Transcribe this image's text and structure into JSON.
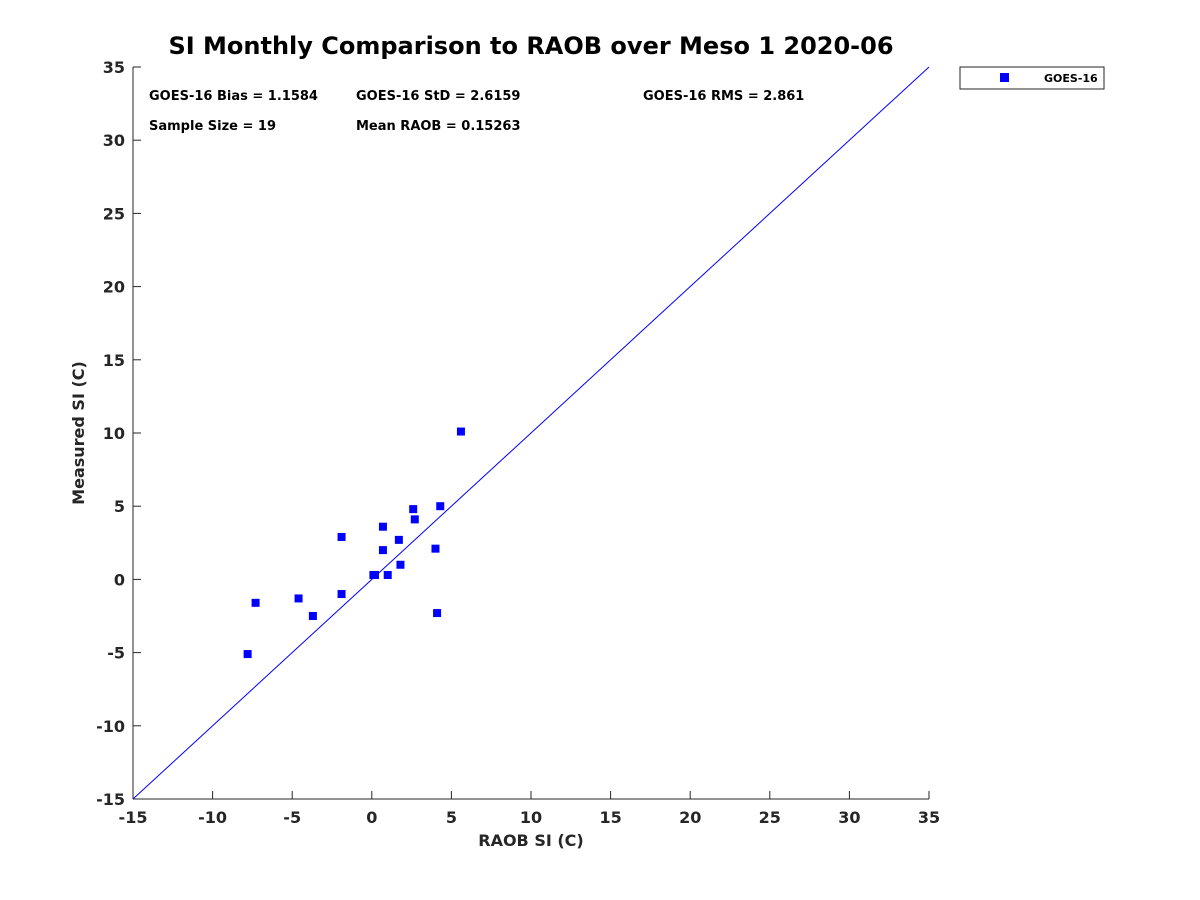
{
  "chart_data": {
    "type": "scatter",
    "title": "SI Monthly Comparison to RAOB over Meso 1 2020-06",
    "xlabel": "RAOB SI (C)",
    "ylabel": "Measured SI (C)",
    "xlim": [
      -15,
      35
    ],
    "ylim": [
      -15,
      35
    ],
    "xticks": [
      -15,
      -10,
      -5,
      0,
      5,
      10,
      15,
      20,
      25,
      30,
      35
    ],
    "yticks": [
      -15,
      -10,
      -5,
      0,
      5,
      10,
      15,
      20,
      25,
      30,
      35
    ],
    "grid": false,
    "reference_line": {
      "name": "1:1 line",
      "x": [
        -15,
        35
      ],
      "y": [
        -15,
        35
      ],
      "color": "#0000ff"
    },
    "series": [
      {
        "name": "GOES-16",
        "color": "#0000ff",
        "marker": "square",
        "points": [
          {
            "x": 5.6,
            "y": 10.1
          },
          {
            "x": 2.6,
            "y": 4.8
          },
          {
            "x": 2.7,
            "y": 4.1
          },
          {
            "x": 4.3,
            "y": 5.0
          },
          {
            "x": 0.7,
            "y": 3.6
          },
          {
            "x": -1.9,
            "y": 2.9
          },
          {
            "x": 1.7,
            "y": 2.7
          },
          {
            "x": 0.7,
            "y": 2.0
          },
          {
            "x": 4.0,
            "y": 2.1
          },
          {
            "x": 1.8,
            "y": 1.0
          },
          {
            "x": 0.1,
            "y": 0.3
          },
          {
            "x": 0.2,
            "y": 0.3
          },
          {
            "x": 1.0,
            "y": 0.3
          },
          {
            "x": -1.9,
            "y": -1.0
          },
          {
            "x": -4.6,
            "y": -1.3
          },
          {
            "x": -7.3,
            "y": -1.6
          },
          {
            "x": -3.7,
            "y": -2.5
          },
          {
            "x": 4.1,
            "y": -2.3
          },
          {
            "x": -7.8,
            "y": -5.1
          }
        ]
      }
    ],
    "annotations": {
      "bias": "GOES-16 Bias = 1.1584",
      "std": "GOES-16 StD = 2.6159",
      "rms": "GOES-16 RMS = 2.861",
      "sample_size": "Sample Size = 19",
      "mean_raob": "Mean RAOB = 0.15263"
    },
    "legend": {
      "position": "outside-top-right",
      "entries": [
        "GOES-16"
      ]
    }
  }
}
